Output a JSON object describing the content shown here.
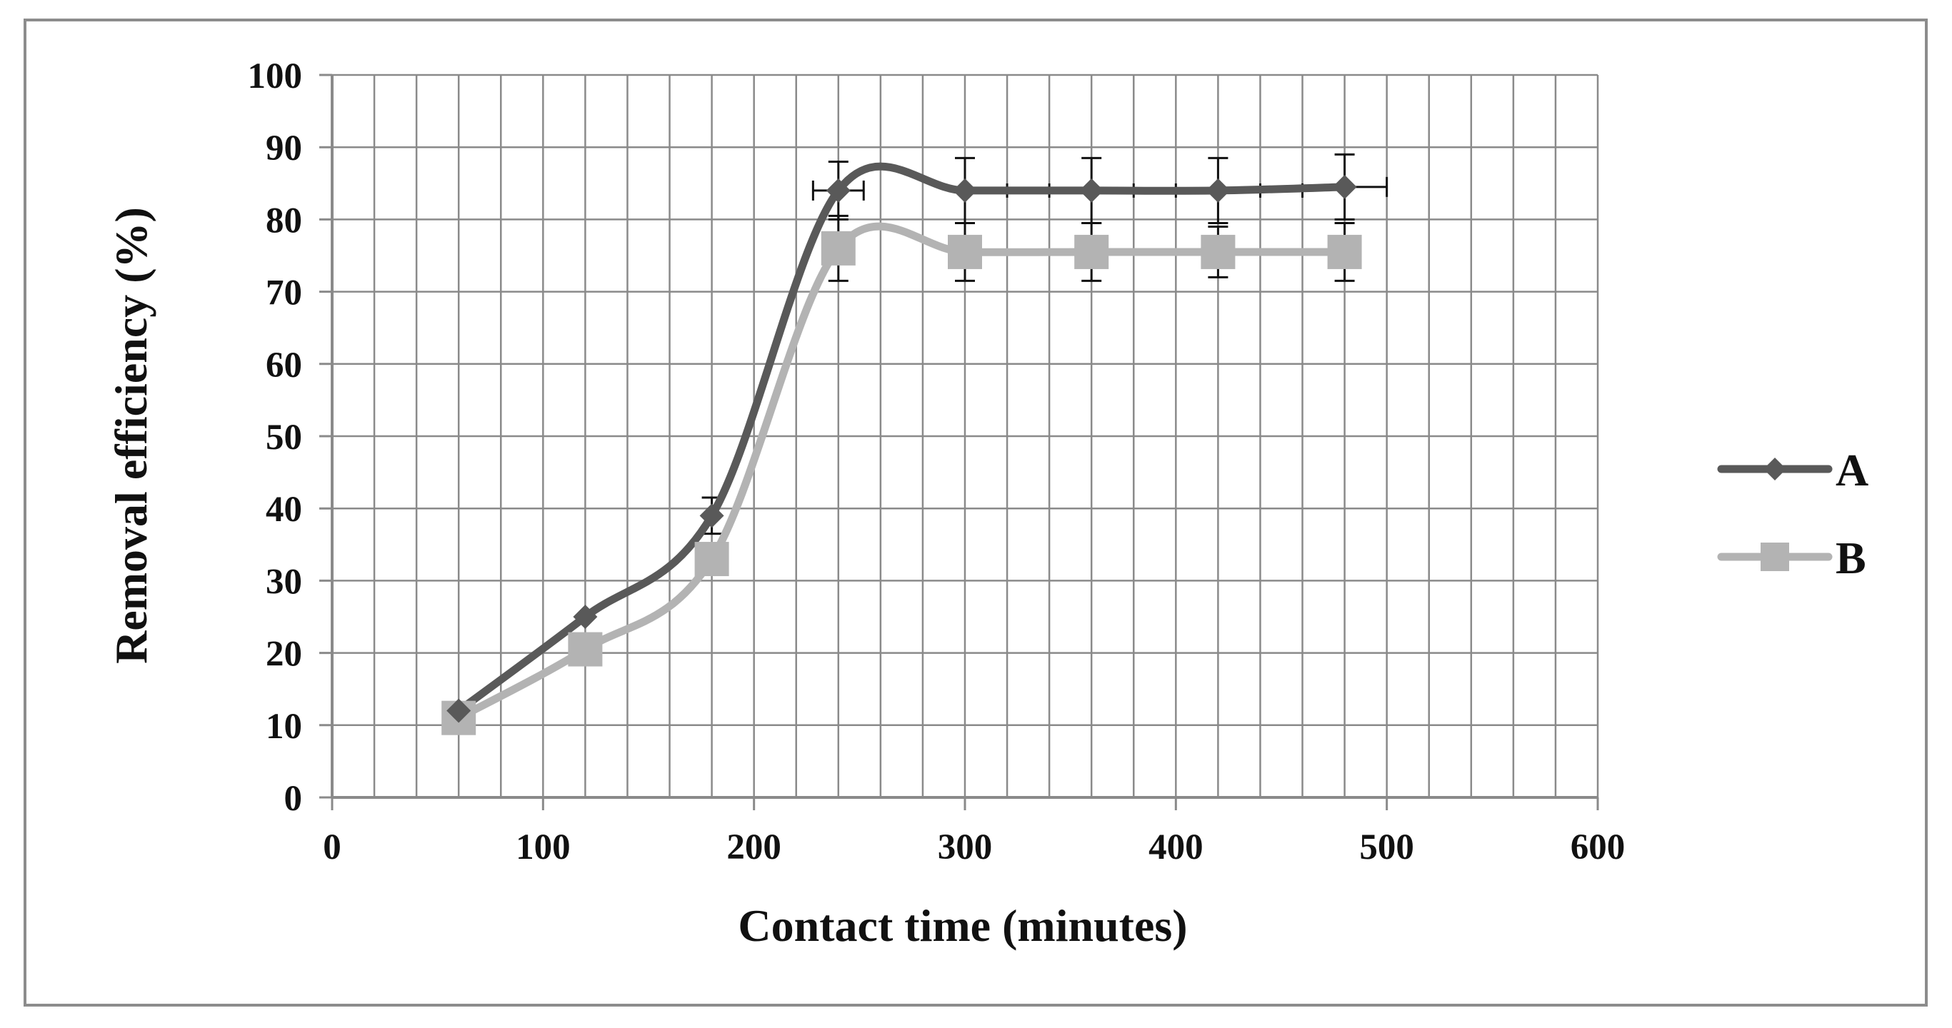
{
  "chart_data": {
    "type": "line",
    "title": "",
    "xlabel": "Contact time (minutes)",
    "ylabel": "Removal efficiency (%)",
    "xlim": [
      0,
      600
    ],
    "ylim": [
      0,
      100
    ],
    "x_ticks": [
      0,
      100,
      200,
      300,
      400,
      500,
      600
    ],
    "y_ticks": [
      0,
      10,
      20,
      30,
      40,
      50,
      60,
      70,
      80,
      90,
      100
    ],
    "x_minor_step": 20,
    "y_major_step": 10,
    "grid": true,
    "smooth": true,
    "legend": "right",
    "x": [
      60,
      120,
      180,
      240,
      300,
      360,
      420,
      480
    ],
    "series": [
      {
        "name": "A",
        "color": "#595959",
        "marker": "diamond",
        "values": [
          12,
          25,
          39,
          84,
          84,
          84,
          84,
          84.5
        ],
        "y_error": [
          0,
          0,
          2.5,
          4,
          4.5,
          4.5,
          4.5,
          4.5
        ],
        "x_error": [
          0,
          0,
          0,
          12,
          0,
          0,
          0,
          0
        ],
        "x_error_caps": [
          0,
          0,
          0,
          0,
          0,
          0,
          0,
          20
        ]
      },
      {
        "name": "B",
        "color": "#b3b3b3",
        "marker": "square",
        "values": [
          11,
          20.5,
          33,
          76,
          75.5,
          75.5,
          75.5,
          75.5
        ],
        "y_error": [
          0,
          0,
          0,
          4.5,
          4,
          4,
          3.5,
          4
        ],
        "x_error": [
          0,
          0,
          0,
          0,
          0,
          0,
          0,
          0
        ]
      }
    ]
  }
}
